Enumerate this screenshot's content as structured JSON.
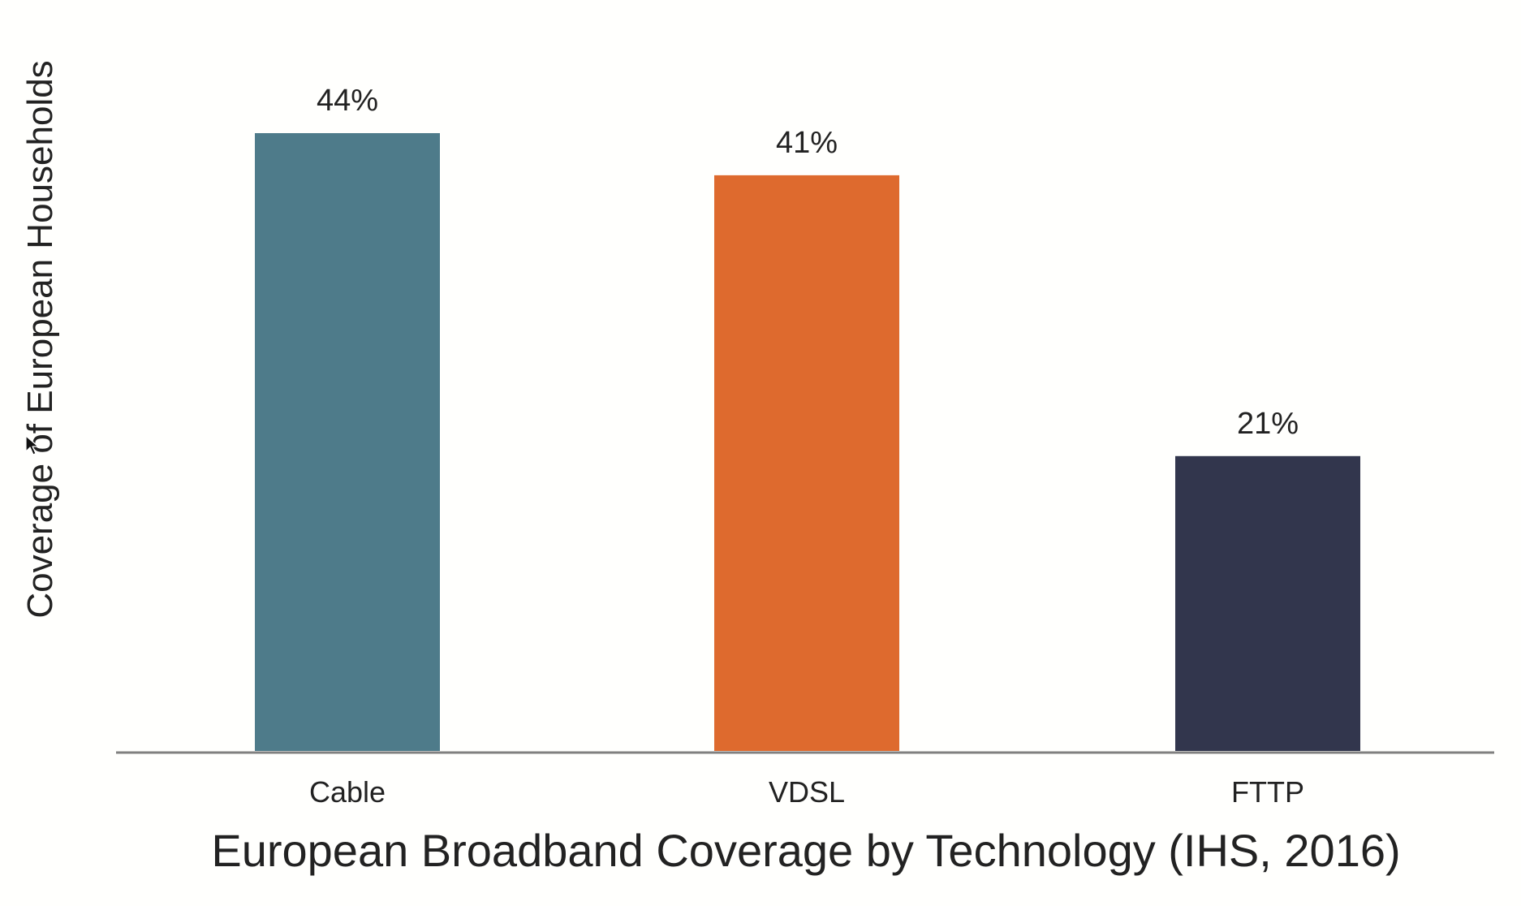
{
  "chart_data": {
    "type": "bar",
    "categories": [
      "Cable",
      "VDSL",
      "FTTP"
    ],
    "values": [
      44,
      41,
      21
    ],
    "value_labels": [
      "44%",
      "41%",
      "21%"
    ],
    "colors": [
      "#4E7B8A",
      "#DE6A2E",
      "#32364D"
    ],
    "title": "European Broadband Coverage by Technology (IHS, 2016)",
    "xlabel": "",
    "ylabel": "Coverage of European Households",
    "ylim": [
      0,
      44
    ],
    "grid": false,
    "legend": "none",
    "axis_color": "#808080",
    "text_color": "#222222"
  },
  "cursor": {
    "icon": "mouse-pointer-icon"
  }
}
